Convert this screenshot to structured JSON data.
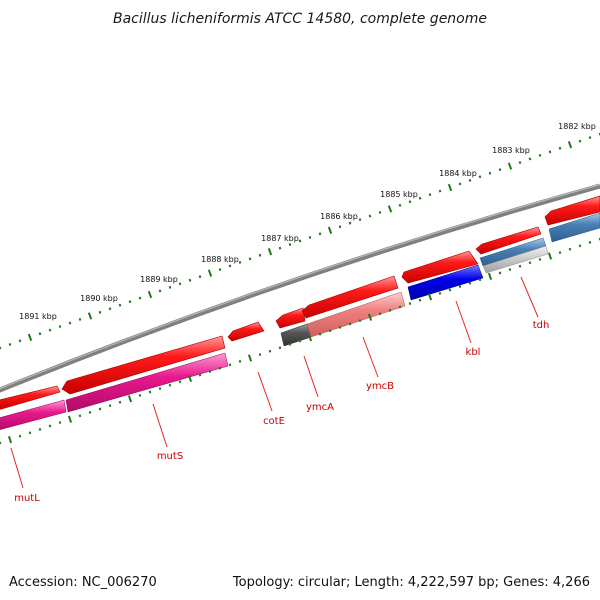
{
  "title": "Bacillus licheniformis ATCC 14580, complete genome",
  "footer": {
    "accession": "Accession: NC_006270",
    "topology": "Topology: circular; Length: 4,222,597 bp; Genes: 4,266"
  },
  "scale": {
    "ticks": [
      "1882 kbp",
      "1883 kbp",
      "1884 kbp",
      "1885 kbp",
      "1886 kbp",
      "1887 kbp",
      "1888 kbp",
      "1889 kbp",
      "1890 kbp",
      "1891 kbp"
    ]
  },
  "genes": [
    "mutL",
    "mutS",
    "cotE",
    "ymcA",
    "ymcB",
    "kbl",
    "tdh"
  ],
  "colors": {
    "cds": "#ff0000",
    "backbone": "#808080",
    "scale_ticks": "#1a7a1a",
    "gene_label": "#cc0000",
    "mutL_mutS": "#e8198c",
    "ymcA": "#555555",
    "ymcB": "#f08080",
    "kbl": "#0000ee",
    "tdh": "#4a7fb5"
  }
}
